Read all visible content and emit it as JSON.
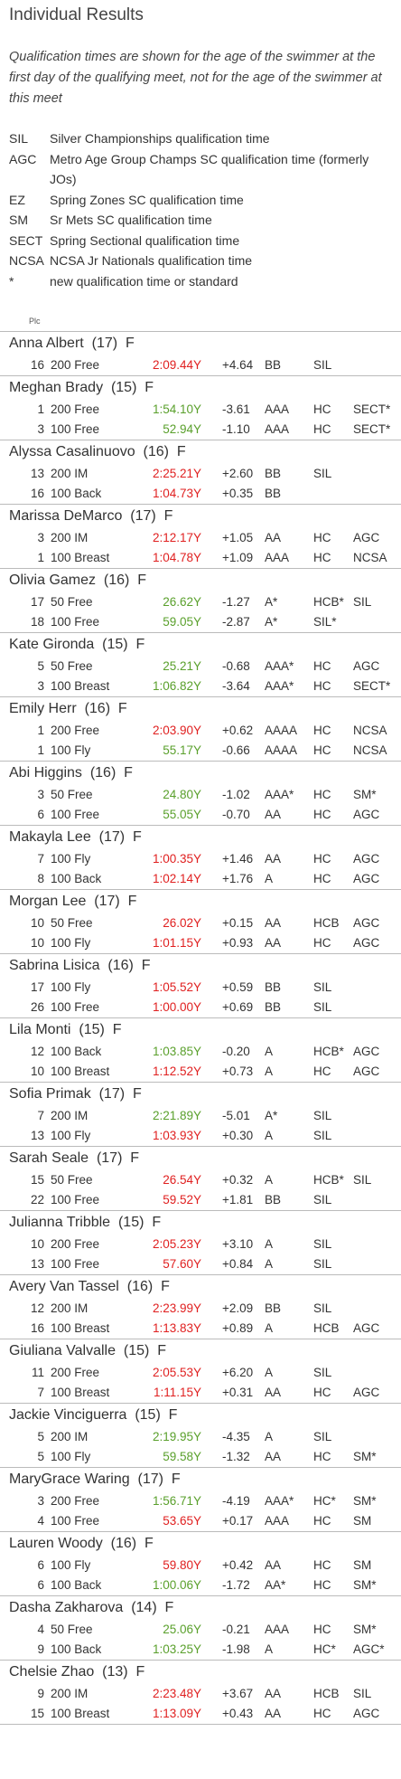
{
  "header": {
    "title": "Individual Results",
    "note": "Qualification times are shown for the age of the swimmer at the first day of the qualifying meet, not for the age of the swimmer at this meet",
    "legend": [
      {
        "code": "SIL",
        "text": "Silver Championships qualification time"
      },
      {
        "code": "AGC",
        "text": "Metro Age Group Champs SC qualification time (formerly JOs)"
      },
      {
        "code": "EZ",
        "text": "Spring Zones SC qualification time"
      },
      {
        "code": "SM",
        "text": "Sr Mets SC qualification time"
      },
      {
        "code": "SECT",
        "text": "Spring Sectional qualification time"
      },
      {
        "code": "NCSA",
        "text": "NCSA Jr Nationals qualification time"
      },
      {
        "code": "*",
        "text": "new qualification time or standard"
      }
    ],
    "column": "Plc"
  },
  "swimmers": [
    {
      "name": "Anna Albert",
      "age": "(17)",
      "sex": "F",
      "results": [
        {
          "place": "16",
          "event": "200 Free",
          "time": "2:09.44Y",
          "color": "#e02020",
          "delta": "+4.64",
          "std": "BB",
          "codes": [
            "SIL"
          ]
        }
      ]
    },
    {
      "name": "Meghan Brady",
      "age": "(15)",
      "sex": "F",
      "results": [
        {
          "place": "1",
          "event": "200 Free",
          "time": "1:54.10Y",
          "color": "#5aa02c",
          "delta": "-3.61",
          "std": "AAA",
          "codes": [
            "HC",
            "SECT*"
          ]
        },
        {
          "place": "3",
          "event": "100 Free",
          "time": "52.94Y",
          "color": "#5aa02c",
          "delta": "-1.10",
          "std": "AAA",
          "codes": [
            "HC",
            "SECT*"
          ]
        }
      ]
    },
    {
      "name": "Alyssa Casalinuovo",
      "age": "(16)",
      "sex": "F",
      "results": [
        {
          "place": "13",
          "event": "200 IM",
          "time": "2:25.21Y",
          "color": "#e02020",
          "delta": "+2.60",
          "std": "BB",
          "codes": [
            "SIL"
          ]
        },
        {
          "place": "16",
          "event": "100 Back",
          "time": "1:04.73Y",
          "color": "#e02020",
          "delta": "+0.35",
          "std": "BB",
          "codes": []
        }
      ]
    },
    {
      "name": "Marissa DeMarco",
      "age": "(17)",
      "sex": "F",
      "results": [
        {
          "place": "3",
          "event": "200 IM",
          "time": "2:12.17Y",
          "color": "#e02020",
          "delta": "+1.05",
          "std": "AA",
          "codes": [
            "HC",
            "AGC"
          ]
        },
        {
          "place": "1",
          "event": "100 Breast",
          "time": "1:04.78Y",
          "color": "#e02020",
          "delta": "+1.09",
          "std": "AAA",
          "codes": [
            "HC",
            "NCSA"
          ]
        }
      ]
    },
    {
      "name": "Olivia Gamez",
      "age": "(16)",
      "sex": "F",
      "results": [
        {
          "place": "17",
          "event": "50 Free",
          "time": "26.62Y",
          "color": "#5aa02c",
          "delta": "-1.27",
          "std": "A*",
          "codes": [
            "HCB*",
            "SIL"
          ]
        },
        {
          "place": "18",
          "event": "100 Free",
          "time": "59.05Y",
          "color": "#5aa02c",
          "delta": "-2.87",
          "std": "A*",
          "codes": [
            "SIL*"
          ]
        }
      ]
    },
    {
      "name": "Kate Gironda",
      "age": "(15)",
      "sex": "F",
      "results": [
        {
          "place": "5",
          "event": "50 Free",
          "time": "25.21Y",
          "color": "#5aa02c",
          "delta": "-0.68",
          "std": "AAA*",
          "codes": [
            "HC",
            "AGC"
          ]
        },
        {
          "place": "3",
          "event": "100 Breast",
          "time": "1:06.82Y",
          "color": "#5aa02c",
          "delta": "-3.64",
          "std": "AAA*",
          "codes": [
            "HC",
            "SECT*"
          ]
        }
      ]
    },
    {
      "name": "Emily Herr",
      "age": "(16)",
      "sex": "F",
      "results": [
        {
          "place": "1",
          "event": "200 Free",
          "time": "2:03.90Y",
          "color": "#e02020",
          "delta": "+0.62",
          "std": "AAAA",
          "codes": [
            "HC",
            "NCSA"
          ]
        },
        {
          "place": "1",
          "event": "100 Fly",
          "time": "55.17Y",
          "color": "#5aa02c",
          "delta": "-0.66",
          "std": "AAAA",
          "codes": [
            "HC",
            "NCSA"
          ]
        }
      ]
    },
    {
      "name": "Abi Higgins",
      "age": "(16)",
      "sex": "F",
      "results": [
        {
          "place": "3",
          "event": "50 Free",
          "time": "24.80Y",
          "color": "#5aa02c",
          "delta": "-1.02",
          "std": "AAA*",
          "codes": [
            "HC",
            "SM*"
          ]
        },
        {
          "place": "6",
          "event": "100 Free",
          "time": "55.05Y",
          "color": "#5aa02c",
          "delta": "-0.70",
          "std": "AA",
          "codes": [
            "HC",
            "AGC"
          ]
        }
      ]
    },
    {
      "name": "Makayla Lee",
      "age": "(17)",
      "sex": "F",
      "results": [
        {
          "place": "7",
          "event": "100 Fly",
          "time": "1:00.35Y",
          "color": "#e02020",
          "delta": "+1.46",
          "std": "AA",
          "codes": [
            "HC",
            "AGC"
          ]
        },
        {
          "place": "8",
          "event": "100 Back",
          "time": "1:02.14Y",
          "color": "#e02020",
          "delta": "+1.76",
          "std": "A",
          "codes": [
            "HC",
            "AGC"
          ]
        }
      ]
    },
    {
      "name": "Morgan Lee",
      "age": "(17)",
      "sex": "F",
      "results": [
        {
          "place": "10",
          "event": "50 Free",
          "time": "26.02Y",
          "color": "#e02020",
          "delta": "+0.15",
          "std": "AA",
          "codes": [
            "HCB",
            "AGC"
          ]
        },
        {
          "place": "10",
          "event": "100 Fly",
          "time": "1:01.15Y",
          "color": "#e02020",
          "delta": "+0.93",
          "std": "AA",
          "codes": [
            "HC",
            "AGC"
          ]
        }
      ]
    },
    {
      "name": "Sabrina Lisica",
      "age": "(16)",
      "sex": "F",
      "results": [
        {
          "place": "17",
          "event": "100 Fly",
          "time": "1:05.52Y",
          "color": "#e02020",
          "delta": "+0.59",
          "std": "BB",
          "codes": [
            "SIL"
          ]
        },
        {
          "place": "26",
          "event": "100 Free",
          "time": "1:00.00Y",
          "color": "#e02020",
          "delta": "+0.69",
          "std": "BB",
          "codes": [
            "SIL"
          ]
        }
      ]
    },
    {
      "name": "Lila Monti",
      "age": "(15)",
      "sex": "F",
      "results": [
        {
          "place": "12",
          "event": "100 Back",
          "time": "1:03.85Y",
          "color": "#5aa02c",
          "delta": "-0.20",
          "std": "A",
          "codes": [
            "HCB*",
            "AGC"
          ]
        },
        {
          "place": "10",
          "event": "100 Breast",
          "time": "1:12.52Y",
          "color": "#e02020",
          "delta": "+0.73",
          "std": "A",
          "codes": [
            "HC",
            "AGC"
          ]
        }
      ]
    },
    {
      "name": "Sofia Primak",
      "age": "(17)",
      "sex": "F",
      "results": [
        {
          "place": "7",
          "event": "200 IM",
          "time": "2:21.89Y",
          "color": "#5aa02c",
          "delta": "-5.01",
          "std": "A*",
          "codes": [
            "SIL"
          ]
        },
        {
          "place": "13",
          "event": "100 Fly",
          "time": "1:03.93Y",
          "color": "#e02020",
          "delta": "+0.30",
          "std": "A",
          "codes": [
            "SIL"
          ]
        }
      ]
    },
    {
      "name": "Sarah Seale",
      "age": "(17)",
      "sex": "F",
      "results": [
        {
          "place": "15",
          "event": "50 Free",
          "time": "26.54Y",
          "color": "#e02020",
          "delta": "+0.32",
          "std": "A",
          "codes": [
            "HCB*",
            "SIL"
          ]
        },
        {
          "place": "22",
          "event": "100 Free",
          "time": "59.52Y",
          "color": "#e02020",
          "delta": "+1.81",
          "std": "BB",
          "codes": [
            "SIL"
          ]
        }
      ]
    },
    {
      "name": "Julianna Tribble",
      "age": "(15)",
      "sex": "F",
      "results": [
        {
          "place": "10",
          "event": "200 Free",
          "time": "2:05.23Y",
          "color": "#e02020",
          "delta": "+3.10",
          "std": "A",
          "codes": [
            "SIL"
          ]
        },
        {
          "place": "13",
          "event": "100 Free",
          "time": "57.60Y",
          "color": "#e02020",
          "delta": "+0.84",
          "std": "A",
          "codes": [
            "SIL"
          ]
        }
      ]
    },
    {
      "name": "Avery Van Tassel",
      "age": "(16)",
      "sex": "F",
      "results": [
        {
          "place": "12",
          "event": "200 IM",
          "time": "2:23.99Y",
          "color": "#e02020",
          "delta": "+2.09",
          "std": "BB",
          "codes": [
            "SIL"
          ]
        },
        {
          "place": "16",
          "event": "100 Breast",
          "time": "1:13.83Y",
          "color": "#e02020",
          "delta": "+0.89",
          "std": "A",
          "codes": [
            "HCB",
            "AGC"
          ]
        }
      ]
    },
    {
      "name": "Giuliana Valvalle",
      "age": "(15)",
      "sex": "F",
      "results": [
        {
          "place": "11",
          "event": "200 Free",
          "time": "2:05.53Y",
          "color": "#e02020",
          "delta": "+6.20",
          "std": "A",
          "codes": [
            "SIL"
          ]
        },
        {
          "place": "7",
          "event": "100 Breast",
          "time": "1:11.15Y",
          "color": "#e02020",
          "delta": "+0.31",
          "std": "AA",
          "codes": [
            "HC",
            "AGC"
          ]
        }
      ]
    },
    {
      "name": "Jackie Vinciguerra",
      "age": "(15)",
      "sex": "F",
      "results": [
        {
          "place": "5",
          "event": "200 IM",
          "time": "2:19.95Y",
          "color": "#5aa02c",
          "delta": "-4.35",
          "std": "A",
          "codes": [
            "SIL"
          ]
        },
        {
          "place": "5",
          "event": "100 Fly",
          "time": "59.58Y",
          "color": "#5aa02c",
          "delta": "-1.32",
          "std": "AA",
          "codes": [
            "HC",
            "SM*"
          ]
        }
      ]
    },
    {
      "name": "MaryGrace Waring",
      "age": "(17)",
      "sex": "F",
      "results": [
        {
          "place": "3",
          "event": "200 Free",
          "time": "1:56.71Y",
          "color": "#5aa02c",
          "delta": "-4.19",
          "std": "AAA*",
          "codes": [
            "HC*",
            "SM*"
          ]
        },
        {
          "place": "4",
          "event": "100 Free",
          "time": "53.65Y",
          "color": "#e02020",
          "delta": "+0.17",
          "std": "AAA",
          "codes": [
            "HC",
            "SM"
          ]
        }
      ]
    },
    {
      "name": "Lauren Woody",
      "age": "(16)",
      "sex": "F",
      "results": [
        {
          "place": "6",
          "event": "100 Fly",
          "time": "59.80Y",
          "color": "#e02020",
          "delta": "+0.42",
          "std": "AA",
          "codes": [
            "HC",
            "SM"
          ]
        },
        {
          "place": "6",
          "event": "100 Back",
          "time": "1:00.06Y",
          "color": "#5aa02c",
          "delta": "-1.72",
          "std": "AA*",
          "codes": [
            "HC",
            "SM*"
          ]
        }
      ]
    },
    {
      "name": "Dasha Zakharova",
      "age": "(14)",
      "sex": "F",
      "results": [
        {
          "place": "4",
          "event": "50 Free",
          "time": "25.06Y",
          "color": "#5aa02c",
          "delta": "-0.21",
          "std": "AAA",
          "codes": [
            "HC",
            "SM*"
          ]
        },
        {
          "place": "9",
          "event": "100 Back",
          "time": "1:03.25Y",
          "color": "#5aa02c",
          "delta": "-1.98",
          "std": "A",
          "codes": [
            "HC*",
            "AGC*"
          ]
        }
      ]
    },
    {
      "name": "Chelsie Zhao",
      "age": "(13)",
      "sex": "F",
      "results": [
        {
          "place": "9",
          "event": "200 IM",
          "time": "2:23.48Y",
          "color": "#e02020",
          "delta": "+3.67",
          "std": "AA",
          "codes": [
            "HCB",
            "SIL"
          ]
        },
        {
          "place": "15",
          "event": "100 Breast",
          "time": "1:13.09Y",
          "color": "#e02020",
          "delta": "+0.43",
          "std": "AA",
          "codes": [
            "HC",
            "AGC"
          ]
        }
      ]
    }
  ]
}
